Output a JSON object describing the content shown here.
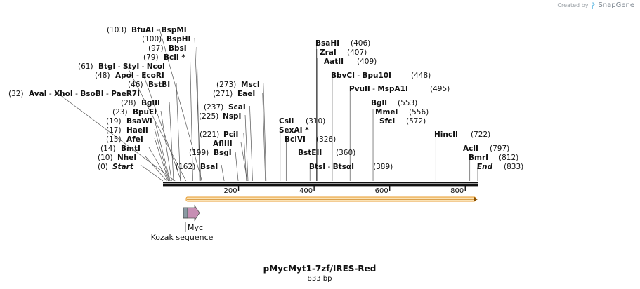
{
  "credit": {
    "prefix": "Created by",
    "brand": "SnapGene",
    "icon": "snapgene-logo-icon"
  },
  "map": {
    "name": "pMycMyt1-7zf/IRES-Red",
    "length_label": "833 bp",
    "length": 833,
    "ticks": [
      "200",
      "400",
      "600",
      "800"
    ],
    "tick_values": [
      200,
      400,
      600,
      800
    ]
  },
  "sites": [
    {
      "pos": "(0)",
      "names": [
        "Start"
      ],
      "special": "italic",
      "bp": 0
    },
    {
      "pos": "(10)",
      "names": [
        "NheI"
      ],
      "bp": 10
    },
    {
      "pos": "(14)",
      "names": [
        "BmtI"
      ],
      "bp": 14
    },
    {
      "pos": "(15)",
      "names": [
        "AfeI"
      ],
      "bp": 15
    },
    {
      "pos": "(17)",
      "names": [
        "HaeII"
      ],
      "bp": 17
    },
    {
      "pos": "(19)",
      "names": [
        "BsaWI"
      ],
      "bp": 19
    },
    {
      "pos": "(23)",
      "names": [
        "BpuEI"
      ],
      "bp": 23
    },
    {
      "pos": "(28)",
      "names": [
        "BglII"
      ],
      "bp": 28
    },
    {
      "pos": "(32)",
      "names": [
        "AvaI",
        "XhoI",
        "BsoBI",
        "PaeR7I"
      ],
      "bp": 32
    },
    {
      "pos": "(46)",
      "names": [
        "BstBI"
      ],
      "bp": 46
    },
    {
      "pos": "(48)",
      "names": [
        "ApoI",
        "EcoRI"
      ],
      "bp": 48
    },
    {
      "pos": "(61)",
      "names": [
        "BtgI",
        "StyI",
        "NcoI"
      ],
      "bp": 61
    },
    {
      "pos": "(79)",
      "names": [
        "BclI *"
      ],
      "bp": 79
    },
    {
      "pos": "(97)",
      "names": [
        "BbsI"
      ],
      "bp": 97
    },
    {
      "pos": "(100)",
      "names": [
        "BspHI"
      ],
      "bp": 100
    },
    {
      "pos": "(103)",
      "names": [
        "BfuAI",
        "BspMI"
      ],
      "bp": 103
    },
    {
      "pos": "(162)",
      "names": [
        "BsaI"
      ],
      "bp": 162
    },
    {
      "pos": "(199)",
      "names": [
        "BsgI"
      ],
      "bp": 199
    },
    {
      "pos": "(221)",
      "names": [
        "PciI"
      ],
      "bp": 221
    },
    {
      "pos": "(225)",
      "names": [
        "NspI"
      ],
      "bp": 225
    },
    {
      "pos": "(237)",
      "names": [
        "ScaI"
      ],
      "bp": 237
    },
    {
      "pos": "(271)",
      "names": [
        "EaeI"
      ],
      "bp": 271
    },
    {
      "pos": "(273)",
      "names": [
        "MscI"
      ],
      "bp": 273
    },
    {
      "pos": "",
      "names": [
        "AflIII"
      ],
      "bp": 223
    },
    {
      "pos": "(310)",
      "names": [
        "CsiI"
      ],
      "bp": 310
    },
    {
      "pos": "",
      "names": [
        "SexAI *"
      ],
      "bp": 310
    },
    {
      "pos": "(326)",
      "names": [
        "BciVI"
      ],
      "bp": 326
    },
    {
      "pos": "(360)",
      "names": [
        "BstEII"
      ],
      "bp": 360
    },
    {
      "pos": "(389)",
      "names": [
        "BtsI",
        "BtsαI"
      ],
      "bp": 389
    },
    {
      "pos": "(406)",
      "names": [
        "BsaHI"
      ],
      "bp": 406
    },
    {
      "pos": "(407)",
      "names": [
        "ZraI"
      ],
      "bp": 407
    },
    {
      "pos": "(409)",
      "names": [
        "AatII"
      ],
      "bp": 409
    },
    {
      "pos": "(448)",
      "names": [
        "BbvCI",
        "Bpu10I"
      ],
      "bp": 448
    },
    {
      "pos": "(495)",
      "names": [
        "PvuII",
        "MspA1I"
      ],
      "bp": 495
    },
    {
      "pos": "(553)",
      "names": [
        "BglI"
      ],
      "bp": 553
    },
    {
      "pos": "(556)",
      "names": [
        "MmeI"
      ],
      "bp": 556
    },
    {
      "pos": "(572)",
      "names": [
        "SfcI"
      ],
      "bp": 572
    },
    {
      "pos": "(722)",
      "names": [
        "HincII"
      ],
      "bp": 722
    },
    {
      "pos": "(797)",
      "names": [
        "AclI"
      ],
      "bp": 797
    },
    {
      "pos": "(812)",
      "names": [
        "BmrI"
      ],
      "bp": 812
    },
    {
      "pos": "(833)",
      "names": [
        "End"
      ],
      "special": "italic",
      "bp": 833
    }
  ],
  "features": [
    {
      "name": "Myc",
      "type": "arrow",
      "color": "#c78fb4"
    },
    {
      "name": "Kozak sequence",
      "type": "box",
      "color": "#8a9aa3"
    }
  ],
  "orf": {
    "color": "#f4b34a"
  }
}
